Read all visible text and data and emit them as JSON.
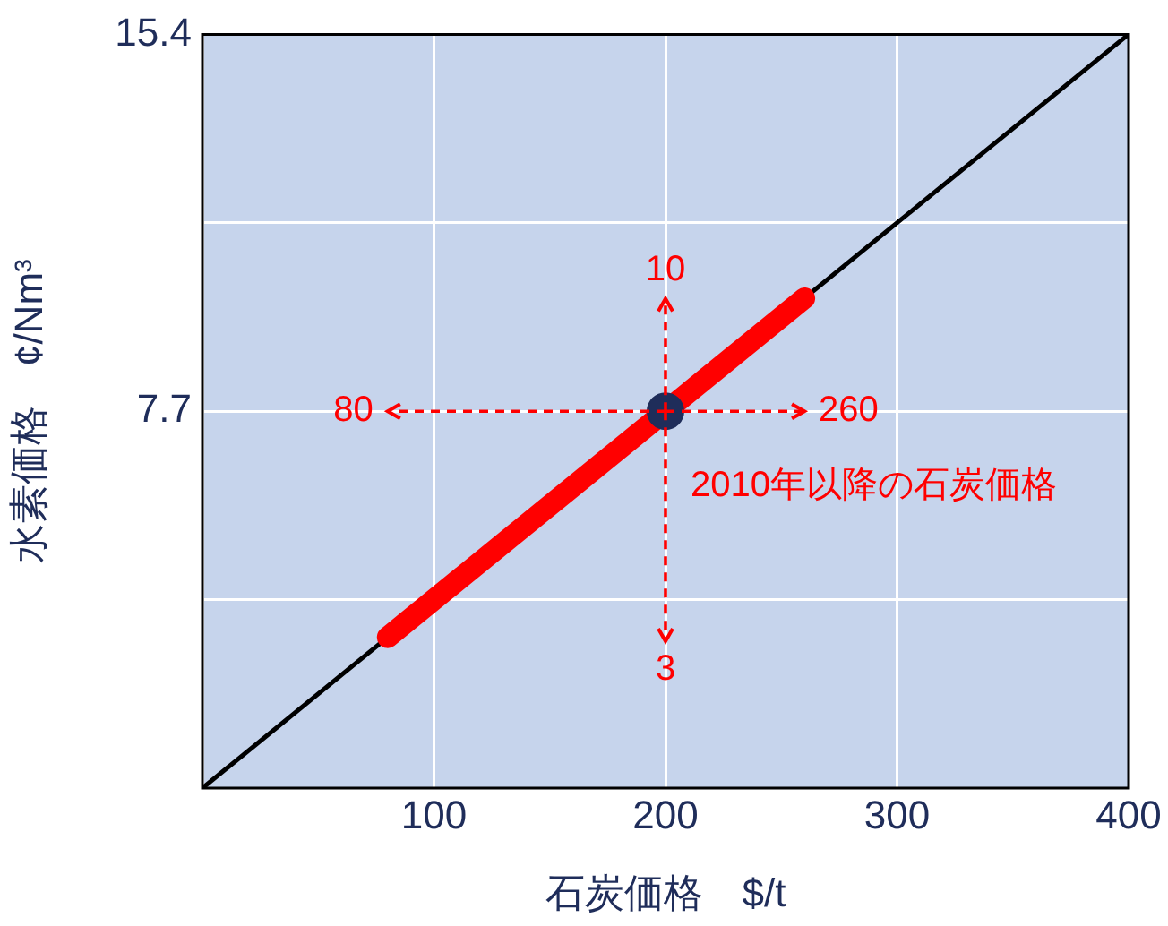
{
  "chart_data": {
    "type": "line",
    "xlabel": "石炭価格　$/t",
    "ylabel": "水素価格　¢/Nm³",
    "xlim": [
      0,
      400
    ],
    "xticks": [
      {
        "value": 0,
        "label": null
      },
      100,
      200,
      300,
      400
    ],
    "ylim": [
      0,
      15.4
    ],
    "yticks": [
      {
        "value": 0,
        "label": null
      },
      {
        "value": 3.85,
        "label": null
      },
      7.7,
      {
        "value": 11.55,
        "label": null
      },
      15.4
    ],
    "grid": true,
    "legend": false,
    "marker": "none",
    "line_style": "solid",
    "series": [
      {
        "color": "#000000",
        "x": [
          0,
          400
        ],
        "values": [
          0,
          15.4
        ]
      },
      {
        "color": "#ff0000",
        "x": [
          80,
          260
        ],
        "values": [
          3.08,
          10.01
        ]
      },
      {
        "type": "scatter",
        "marker": "circle",
        "color": "#1f2d5a",
        "x": [
          200
        ],
        "values": [
          7.7
        ],
        "errors": [
          [
            3,
            10
          ]
        ],
        "xerrors": [
          [
            80,
            260
          ]
        ]
      }
    ],
    "annotations": [
      "10",
      "3",
      "80",
      "260",
      "2010年以降の石炭価格"
    ]
  }
}
